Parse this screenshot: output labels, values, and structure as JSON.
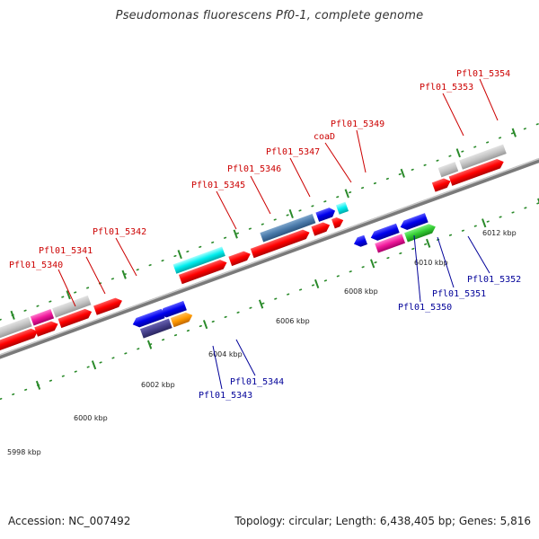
{
  "title": "Pseudomonas fluorescens Pf0-1, complete genome",
  "footer": {
    "accession": "Accession: NC_007492",
    "stats": "Topology: circular; Length: 6,438,405 bp; Genes: 5,816"
  },
  "colors": {
    "top_label": "#cc0000",
    "bottom_label": "#000099",
    "backbone": "#888888",
    "tick": "#2a8a2a"
  },
  "kbp_labels": [
    "5998 kbp",
    "6000 kbp",
    "6002 kbp",
    "6004 kbp",
    "6006 kbp",
    "6008 kbp",
    "6010 kbp",
    "6012 kbp"
  ],
  "genes_top": [
    "Pfl01_5340",
    "Pfl01_5341",
    "Pfl01_5342",
    "Pfl01_5345",
    "Pfl01_5346",
    "Pfl01_5347",
    "coaD",
    "Pfl01_5349",
    "Pfl01_5353",
    "Pfl01_5354"
  ],
  "genes_bottom": [
    "Pfl01_5343",
    "Pfl01_5344",
    "Pfl01_5350",
    "Pfl01_5351",
    "Pfl01_5352"
  ]
}
